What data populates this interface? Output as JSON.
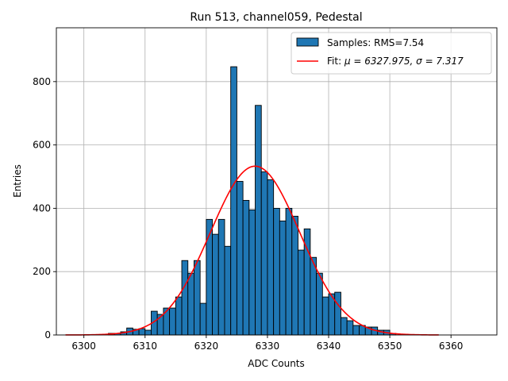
{
  "chart_data": {
    "type": "bar",
    "title": "Run 513, channel059, Pedestal",
    "xlabel": "ADC Counts",
    "ylabel": "Entries",
    "xlim": [
      6295.5,
      6367.5
    ],
    "ylim": [
      0,
      970
    ],
    "x_ticks": [
      6300,
      6310,
      6320,
      6330,
      6340,
      6350,
      6360
    ],
    "y_ticks": [
      0,
      200,
      400,
      600,
      800
    ],
    "grid": true,
    "legend_position": "top-right",
    "bin_width": 1,
    "histogram": {
      "name": "Samples: RMS=7.54",
      "color": "#1f77b4",
      "bin_starts": [
        6304,
        6305,
        6306,
        6307,
        6308,
        6309,
        6310,
        6311,
        6312,
        6313,
        6314,
        6315,
        6316,
        6317,
        6318,
        6319,
        6320,
        6321,
        6322,
        6323,
        6324,
        6325,
        6326,
        6327,
        6328,
        6329,
        6330,
        6331,
        6332,
        6333,
        6334,
        6335,
        6336,
        6337,
        6338,
        6339,
        6340,
        6341,
        6342,
        6343,
        6344,
        6345,
        6346,
        6347,
        6348,
        6349,
        6350
      ],
      "counts": [
        5,
        5,
        10,
        22,
        18,
        20,
        15,
        75,
        65,
        85,
        85,
        120,
        235,
        195,
        235,
        100,
        365,
        318,
        365,
        280,
        847,
        485,
        425,
        395,
        725,
        515,
        490,
        400,
        360,
        400,
        375,
        268,
        335,
        245,
        195,
        120,
        130,
        135,
        55,
        45,
        30,
        30,
        25,
        25,
        15,
        15,
        5
      ]
    },
    "fit": {
      "name_prefix": "Fit: ",
      "name_math": "μ = 6327.975, σ = 7.317",
      "mu": 6327.975,
      "sigma": 7.317,
      "amplitude": 533,
      "x_range": [
        6297,
        6358
      ],
      "color": "#ff0000"
    }
  }
}
